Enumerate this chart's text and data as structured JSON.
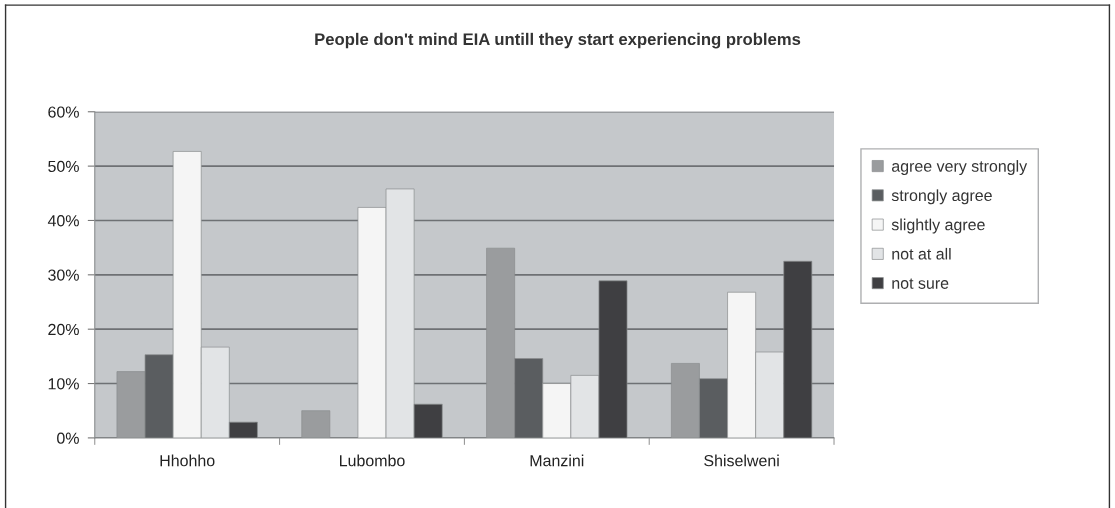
{
  "chart_data": {
    "type": "bar",
    "title": "People don't mind EIA untill they start experiencing problems",
    "categories": [
      "Hhohho",
      "Lubombo",
      "Manzini",
      "Shiselweni"
    ],
    "series": [
      {
        "name": "agree very strongly",
        "color": "#9a9c9e",
        "values": [
          12.2,
          5.0,
          34.9,
          13.7
        ]
      },
      {
        "name": "strongly agree",
        "color": "#5a5d60",
        "values": [
          15.3,
          null,
          14.6,
          10.9
        ]
      },
      {
        "name": "slightly agree",
        "color": "#f5f5f5",
        "values": [
          52.7,
          42.4,
          10.0,
          26.8
        ]
      },
      {
        "name": "not at all",
        "color": "#e2e4e6",
        "values": [
          16.7,
          45.8,
          11.5,
          15.8
        ]
      },
      {
        "name": "not sure",
        "color": "#3f3f42",
        "values": [
          2.9,
          6.2,
          28.9,
          32.5
        ]
      }
    ],
    "ylim": [
      0,
      60
    ],
    "yticks": [
      {
        "value": 0,
        "label": "0%"
      },
      {
        "value": 10,
        "label": "10%"
      },
      {
        "value": 20,
        "label": "20%"
      },
      {
        "value": 30,
        "label": "30%"
      },
      {
        "value": 40,
        "label": "40%"
      },
      {
        "value": 50,
        "label": "50%"
      },
      {
        "value": 60,
        "label": "60%"
      }
    ],
    "grid": "y",
    "legend": "right"
  }
}
